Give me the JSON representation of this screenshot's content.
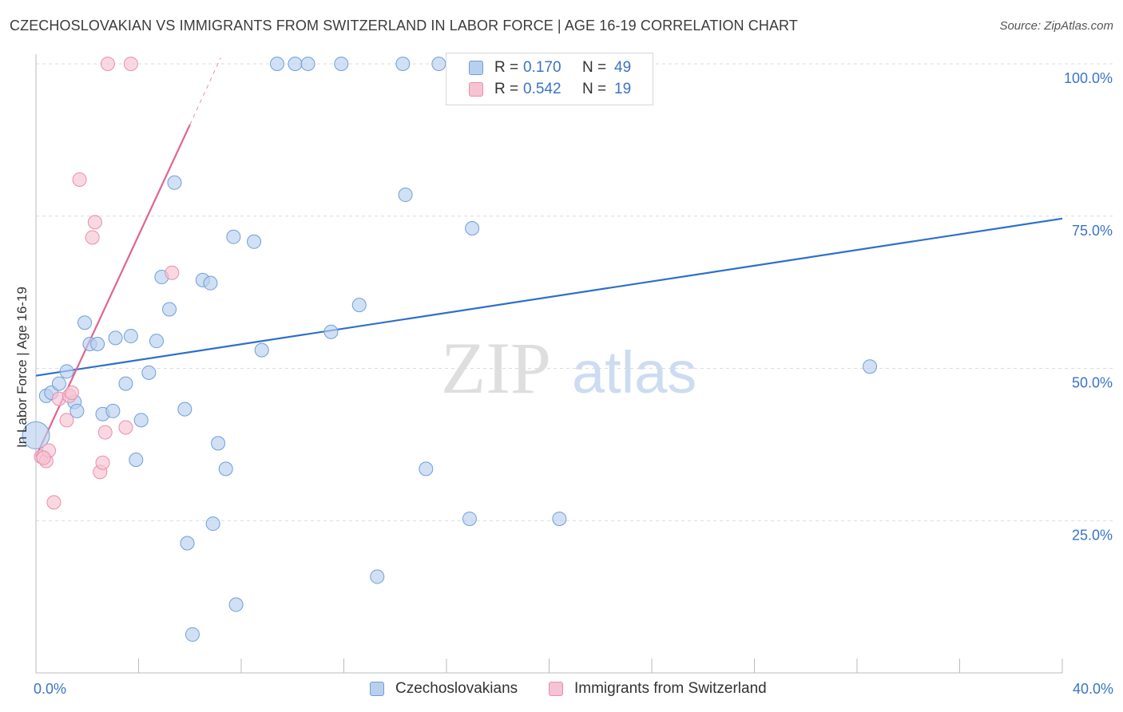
{
  "header": {
    "title": "CZECHOSLOVAKIAN VS IMMIGRANTS FROM SWITZERLAND IN LABOR FORCE | AGE 16-19 CORRELATION CHART",
    "source": "Source: ZipAtlas.com"
  },
  "colors": {
    "blue_fill": "#b8d0ee",
    "blue_stroke": "#6f9fd8",
    "blue_line": "#2e6fcc",
    "pink_fill": "#f6c3d3",
    "pink_stroke": "#e88fab",
    "pink_line": "#e0648f",
    "axis_label": "#3a74c4",
    "grid": "#dcdcdc"
  },
  "legend": {
    "rows": [
      {
        "r_label": "R =",
        "r_value": "0.170",
        "n_label": "N =",
        "n_value": "49"
      },
      {
        "r_label": "R =",
        "r_value": "0.542",
        "n_label": "N =",
        "n_value": "19"
      }
    ]
  },
  "bottom_legend": {
    "series1": "Czechoslovakians",
    "series2": "Immigrants from Switzerland"
  },
  "watermark": {
    "zip": "ZIP",
    "atlas": "atlas"
  },
  "chart_data": {
    "type": "scatter",
    "title": "CZECHOSLOVAKIAN VS IMMIGRANTS FROM SWITZERLAND IN LABOR FORCE | AGE 16-19 CORRELATION CHART",
    "xlabel": "",
    "ylabel": "In Labor Force | Age 16-19",
    "xlim": [
      0,
      40
    ],
    "ylim": [
      0,
      100
    ],
    "x_tick_labels": [
      {
        "value": 0,
        "label": "0.0%"
      },
      {
        "value": 40,
        "label": "40.0%"
      }
    ],
    "y_tick_labels": [
      {
        "value": 25,
        "label": "25.0%"
      },
      {
        "value": 50,
        "label": "50.0%"
      },
      {
        "value": 75,
        "label": "75.0%"
      },
      {
        "value": 100,
        "label": "100.0%"
      }
    ],
    "series": [
      {
        "name": "Czechoslovakians",
        "r": 0.17,
        "n": 49,
        "trend": {
          "x0": 0,
          "y0": 48.8,
          "x1": 40,
          "y1": 74.6
        },
        "points": [
          [
            0.0,
            39.0,
            "big"
          ],
          [
            0.4,
            45.5
          ],
          [
            0.6,
            46.0
          ],
          [
            0.9,
            47.5
          ],
          [
            1.2,
            49.5
          ],
          [
            1.5,
            44.5
          ],
          [
            1.6,
            43.0
          ],
          [
            1.9,
            57.5
          ],
          [
            2.1,
            54.0
          ],
          [
            2.4,
            54.0
          ],
          [
            2.6,
            42.5
          ],
          [
            3.0,
            43.0
          ],
          [
            3.1,
            55.0
          ],
          [
            3.5,
            47.5
          ],
          [
            3.7,
            55.3
          ],
          [
            3.9,
            35.0
          ],
          [
            4.1,
            41.5
          ],
          [
            4.4,
            49.3
          ],
          [
            4.7,
            54.5
          ],
          [
            4.9,
            65.0
          ],
          [
            5.2,
            59.7
          ],
          [
            5.4,
            80.5
          ],
          [
            5.8,
            43.3
          ],
          [
            5.9,
            21.3
          ],
          [
            6.1,
            6.3
          ],
          [
            6.5,
            64.5
          ],
          [
            6.8,
            64.0
          ],
          [
            6.9,
            24.5
          ],
          [
            7.1,
            37.7
          ],
          [
            7.4,
            33.5
          ],
          [
            7.7,
            71.6
          ],
          [
            7.8,
            11.2
          ],
          [
            8.5,
            70.8
          ],
          [
            8.8,
            53.0
          ],
          [
            9.4,
            100
          ],
          [
            10.1,
            100
          ],
          [
            10.6,
            100
          ],
          [
            11.5,
            56.0
          ],
          [
            11.9,
            100
          ],
          [
            12.6,
            60.4
          ],
          [
            13.3,
            15.8
          ],
          [
            14.3,
            100
          ],
          [
            14.4,
            78.5
          ],
          [
            15.2,
            33.5
          ],
          [
            15.7,
            100
          ],
          [
            16.9,
            25.3
          ],
          [
            17.0,
            73.0
          ],
          [
            20.4,
            25.3
          ],
          [
            32.5,
            50.3
          ]
        ]
      },
      {
        "name": "Immigrants from Switzerland",
        "r": 0.542,
        "n": 19,
        "trend": {
          "x0": 0,
          "y0": 35.5,
          "x1": 6.0,
          "y1": 90.0
        },
        "trend_extension": {
          "x0": 6.0,
          "y0": 90.0,
          "x1": 7.2,
          "y1": 101.0
        },
        "points": [
          [
            0.2,
            35.5
          ],
          [
            0.4,
            34.8
          ],
          [
            0.5,
            36.5
          ],
          [
            0.7,
            28.0
          ],
          [
            0.9,
            45.0
          ],
          [
            1.2,
            41.5
          ],
          [
            1.3,
            45.5
          ],
          [
            1.4,
            46.0
          ],
          [
            1.7,
            81.0
          ],
          [
            2.2,
            71.5
          ],
          [
            2.3,
            74.0
          ],
          [
            2.5,
            33.0
          ],
          [
            2.6,
            34.5
          ],
          [
            2.7,
            39.5
          ],
          [
            2.8,
            100
          ],
          [
            3.7,
            100
          ],
          [
            3.5,
            40.3
          ],
          [
            5.3,
            65.7
          ],
          [
            0.3,
            35.3
          ]
        ]
      }
    ]
  }
}
